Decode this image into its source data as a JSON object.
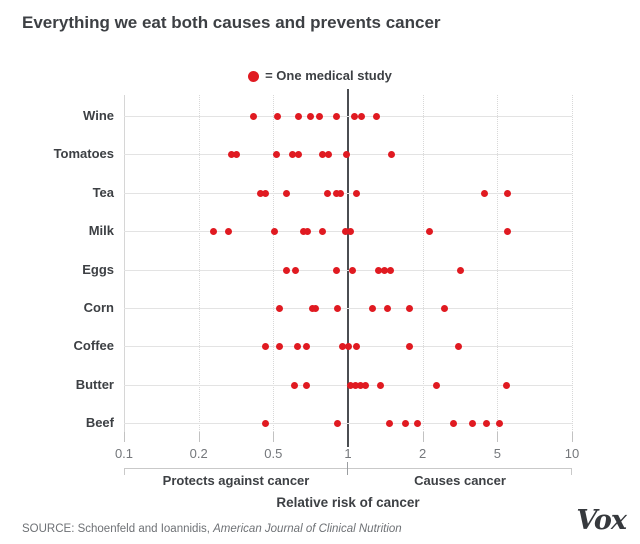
{
  "chart": {
    "title": "Everything we eat both causes and prevents cancer",
    "legend_label": "= One medical study",
    "xlabel": "Relative risk of cancer",
    "zone_left": "Protects against cancer",
    "zone_right": "Causes cancer"
  },
  "source": {
    "prefix": "SOURCE: Schoenfeld and Ioannidis, ",
    "journal": "American Journal of Clinical Nutrition"
  },
  "branding": {
    "logo_text": "Vox"
  },
  "colors": {
    "dot_red": "#e01a21",
    "reference_line": "#4b4e52",
    "text_dark": "#3d4044",
    "text_gray": "#74777b",
    "gridline": "#d8d8d8",
    "rowline": "#e3e3e3"
  },
  "chart_data": {
    "type": "scatter",
    "subtype": "horizontal-dot-plot",
    "title": "Everything we eat both causes and prevents cancer",
    "legend": [
      {
        "marker": "red-dot",
        "label": "= One medical study"
      }
    ],
    "xlabel": "Relative risk of cancer",
    "x_ticks": [
      0.1,
      0.2,
      0.5,
      1,
      2,
      5,
      10
    ],
    "x_scale_note": "tick values spaced equally (log-like)",
    "reference_line_x": 1,
    "zone_annotations": {
      "left_of_1": "Protects against cancer",
      "right_of_1": "Causes cancer"
    },
    "categories": [
      "Wine",
      "Tomatoes",
      "Tea",
      "Milk",
      "Eggs",
      "Corn",
      "Coffee",
      "Butter",
      "Beef"
    ],
    "series": [
      {
        "name": "Wine",
        "values": [
          0.42,
          0.53,
          0.67,
          0.75,
          0.81,
          0.92,
          1.09,
          1.18,
          1.38
        ]
      },
      {
        "name": "Tomatoes",
        "values": [
          0.33,
          0.35,
          0.52,
          0.63,
          0.67,
          0.83,
          0.87,
          0.99,
          1.58
        ]
      },
      {
        "name": "Tea",
        "values": [
          0.45,
          0.47,
          0.59,
          0.86,
          0.92,
          0.95,
          1.12,
          4.5,
          5.66
        ]
      },
      {
        "name": "Milk",
        "values": [
          0.26,
          0.32,
          0.51,
          0.7,
          0.73,
          0.83,
          0.98,
          1.04,
          2.27,
          5.66
        ]
      },
      {
        "name": "Eggs",
        "values": [
          0.59,
          0.65,
          0.92,
          1.06,
          1.41,
          1.49,
          1.57,
          3.5
        ]
      },
      {
        "name": "Corn",
        "values": [
          0.54,
          0.76,
          0.78,
          0.93,
          1.33,
          1.53,
          1.83,
          2.86
        ]
      },
      {
        "name": "Coffee",
        "values": [
          0.47,
          0.54,
          0.66,
          0.72,
          0.96,
          1.0,
          1.12,
          1.82,
          3.42
        ]
      },
      {
        "name": "Butter",
        "values": [
          0.64,
          0.72,
          1.04,
          1.1,
          1.17,
          1.23,
          1.44,
          2.56,
          5.62
        ]
      },
      {
        "name": "Beef",
        "values": [
          0.47,
          0.93,
          1.56,
          1.77,
          1.93,
          3.22,
          4.0,
          4.57,
          5.12
        ]
      }
    ]
  }
}
